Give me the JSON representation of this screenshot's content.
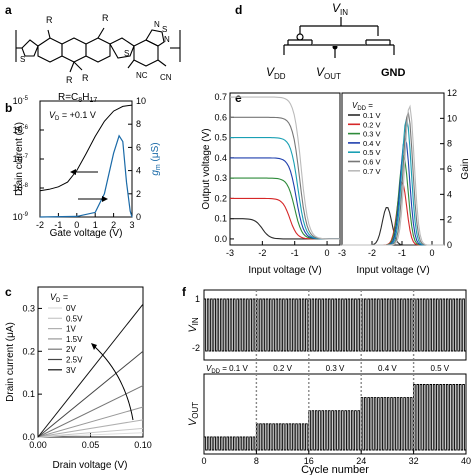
{
  "panels": {
    "a": {
      "label": "a",
      "r_label": "R",
      "r_formula": "R=C",
      "r_formula_sub1": "8",
      "r_formula_h": "H",
      "r_formula_sub2": "17",
      "nc": "NC",
      "cn": "CN",
      "n_atom": "N",
      "s_atom": "S"
    },
    "b": {
      "label": "b",
      "annotation": "V",
      "annotation_sub": "D",
      "annotation_rest": " = +0.1 V",
      "xlabel": "Gate voltage (V)",
      "ylabel": "Drain current (A)",
      "y2label": "g",
      "y2label_sub": "m",
      "y2label_rest": " (μS)",
      "y_ticks": [
        "10",
        "10",
        "10",
        "10",
        "10"
      ],
      "y_exps": [
        "-5",
        "-6",
        "-7",
        "-8",
        "-9"
      ],
      "y2_ticks": [
        "10",
        "8",
        "6",
        "4",
        "2",
        "0"
      ],
      "x_ticks": [
        "-2",
        "-1",
        "0",
        "1",
        "2",
        "3"
      ]
    },
    "c": {
      "label": "c",
      "legend_title": "V",
      "legend_title_sub": "D",
      "legend_title_rest": " =",
      "legend": [
        "0V",
        "0.5V",
        "1V",
        "1.5V",
        "2V",
        "2.5V",
        "3V"
      ],
      "xlabel": "Drain voltage (V)",
      "ylabel": "Drain current (μA)",
      "y_ticks": [
        "0.3",
        "0.2",
        "0.1",
        "0.0"
      ],
      "x_ticks": [
        "0.00",
        "0.05",
        "0.10"
      ]
    },
    "d": {
      "label": "d",
      "vin": "V",
      "vin_sub": "IN",
      "vdd": "V",
      "vdd_sub": "DD",
      "vout": "V",
      "vout_sub": "OUT",
      "gnd": "GND"
    },
    "e": {
      "label": "e",
      "xlabel1": "Input voltage (V)",
      "xlabel2": "Input voltage (V)",
      "ylabel": "Output voltage (V)",
      "y2label": "Gain",
      "legend_title": "V",
      "legend_title_sub": "DD",
      "legend_title_rest": " =",
      "legend": [
        "0.1 V",
        "0.2 V",
        "0.3 V",
        "0.4 V",
        "0.5 V",
        "0.6 V",
        "0.7 V"
      ],
      "y_ticks": [
        "0.7",
        "0.6",
        "0.5",
        "0.4",
        "0.3",
        "0.2",
        "0.1",
        "0.0"
      ],
      "y2_ticks": [
        "12",
        "10",
        "8",
        "6",
        "4",
        "2",
        "0"
      ],
      "x_ticks1": [
        "-3",
        "-2",
        "-1",
        "0"
      ],
      "x_ticks2": [
        "-3",
        "-2",
        "-1",
        "0"
      ]
    },
    "f": {
      "label": "f",
      "ylabel_top": "V",
      "ylabel_top_sub": "IN",
      "ylabel_bottom": "V",
      "ylabel_bottom_sub": "OUT",
      "top_ticks": [
        "1",
        "-2"
      ],
      "xlabel": "Cycle number",
      "x_ticks": [
        "0",
        "8",
        "16",
        "24",
        "32",
        "40"
      ],
      "vdd_label": "V",
      "vdd_label_sub": "DD",
      "vdd_values": [
        " = 0.1 V",
        "0.2 V",
        "0.3 V",
        "0.4 V",
        "0.5 V"
      ]
    }
  },
  "colors": {
    "gm_curve": "#1a6aa8",
    "vtc": [
      "#2b2b2b",
      "#d62728",
      "#2e8b3a",
      "#1f3fae",
      "#1aa0b4",
      "#777777",
      "#bbbbbb"
    ]
  },
  "chart_data": [
    {
      "type": "line",
      "panel": "b",
      "xlabel": "Gate voltage (V)",
      "ylabel": "Drain current (A)",
      "y2label": "gm (μS)",
      "xlim": [
        -2,
        3
      ],
      "ylim_log": [
        1e-09,
        1e-05
      ],
      "y2lim": [
        0,
        10
      ],
      "series": [
        {
          "axis": "left",
          "x": [
            -2,
            -1.5,
            -1,
            -0.5,
            0,
            0.5,
            1,
            1.5,
            2,
            2.5,
            3
          ],
          "y": [
            8e-09,
            9e-09,
            1.1e-08,
            1.6e-08,
            4e-08,
            1.5e-07,
            6e-07,
            2e-06,
            4.5e-06,
            6.5e-06,
            7.2e-06
          ]
        },
        {
          "axis": "right",
          "x": [
            -2,
            0,
            1,
            1.5,
            2,
            2.3,
            2.5,
            2.7,
            2.9,
            3
          ],
          "y": [
            0,
            0.05,
            0.4,
            2,
            5.5,
            7,
            6.5,
            3,
            0.5,
            0
          ]
        }
      ]
    },
    {
      "type": "line",
      "panel": "c",
      "xlabel": "Drain voltage (V)",
      "ylabel": "Drain current (μA)",
      "xlim": [
        0,
        0.1
      ],
      "ylim": [
        0,
        0.35
      ],
      "series": [
        {
          "name": "0V",
          "x": [
            0,
            0.1
          ],
          "y": [
            0,
            0.01
          ]
        },
        {
          "name": "0.5V",
          "x": [
            0,
            0.1
          ],
          "y": [
            0,
            0.02
          ]
        },
        {
          "name": "1V",
          "x": [
            0,
            0.1
          ],
          "y": [
            0,
            0.04
          ]
        },
        {
          "name": "1.5V",
          "x": [
            0,
            0.1
          ],
          "y": [
            0,
            0.07
          ]
        },
        {
          "name": "2V",
          "x": [
            0,
            0.1
          ],
          "y": [
            0,
            0.12
          ]
        },
        {
          "name": "2.5V",
          "x": [
            0,
            0.1
          ],
          "y": [
            0,
            0.2
          ]
        },
        {
          "name": "3V",
          "x": [
            0,
            0.1
          ],
          "y": [
            0,
            0.31
          ]
        }
      ]
    },
    {
      "type": "line",
      "panel": "e-left",
      "xlabel": "Input voltage (V)",
      "ylabel": "Output voltage (V)",
      "xlim": [
        -3,
        0.4
      ],
      "ylim": [
        -0.03,
        0.72
      ],
      "series": [
        {
          "name": "0.1 V",
          "vdd": 0.1,
          "vm": -2.0
        },
        {
          "name": "0.2 V",
          "vdd": 0.2,
          "vm": -1.15
        },
        {
          "name": "0.3 V",
          "vdd": 0.3,
          "vm": -1.0
        },
        {
          "name": "0.4 V",
          "vdd": 0.4,
          "vm": -0.95
        },
        {
          "name": "0.5 V",
          "vdd": 0.5,
          "vm": -0.9
        },
        {
          "name": "0.6 V",
          "vdd": 0.6,
          "vm": -0.85
        },
        {
          "name": "0.7 V",
          "vdd": 0.7,
          "vm": -0.8
        }
      ]
    },
    {
      "type": "line",
      "panel": "e-right",
      "xlabel": "Input voltage (V)",
      "ylabel": "Gain",
      "xlim": [
        -3,
        0.4
      ],
      "ylim": [
        0,
        12
      ],
      "series": [
        {
          "name": "0.1 V",
          "peak_x": -1.5,
          "peak": 3
        },
        {
          "name": "0.2 V",
          "peak_x": -1.0,
          "peak": 5
        },
        {
          "name": "0.3 V",
          "peak_x": -0.95,
          "peak": 7
        },
        {
          "name": "0.4 V",
          "peak_x": -0.9,
          "peak": 8.5
        },
        {
          "name": "0.5 V",
          "peak_x": -0.85,
          "peak": 10
        },
        {
          "name": "0.6 V",
          "peak_x": -0.8,
          "peak": 10.5
        },
        {
          "name": "0.7 V",
          "peak_x": -0.75,
          "peak": 11
        }
      ]
    },
    {
      "type": "line",
      "panel": "f",
      "xlabel": "Cycle number",
      "xlim": [
        0,
        40
      ],
      "top": {
        "ylabel": "VIN",
        "levels": [
          1,
          -2
        ]
      },
      "bottom": {
        "ylabel": "VOUT",
        "segments": [
          {
            "from": 0,
            "to": 8,
            "vdd": 0.1
          },
          {
            "from": 8,
            "to": 16,
            "vdd": 0.2
          },
          {
            "from": 16,
            "to": 24,
            "vdd": 0.3
          },
          {
            "from": 24,
            "to": 32,
            "vdd": 0.4
          },
          {
            "from": 32,
            "to": 40,
            "vdd": 0.5
          }
        ]
      }
    }
  ]
}
